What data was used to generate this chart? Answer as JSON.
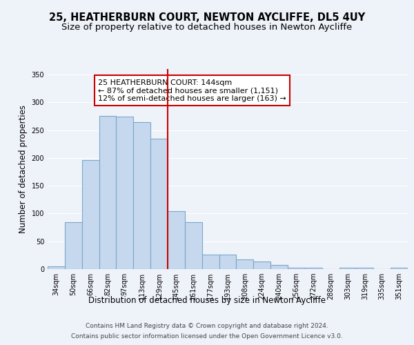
{
  "title": "25, HEATHERBURN COURT, NEWTON AYCLIFFE, DL5 4UY",
  "subtitle": "Size of property relative to detached houses in Newton Aycliffe",
  "xlabel": "Distribution of detached houses by size in Newton Aycliffe",
  "ylabel": "Number of detached properties",
  "categories": [
    "34sqm",
    "50sqm",
    "66sqm",
    "82sqm",
    "97sqm",
    "113sqm",
    "129sqm",
    "145sqm",
    "161sqm",
    "177sqm",
    "193sqm",
    "208sqm",
    "224sqm",
    "240sqm",
    "256sqm",
    "272sqm",
    "288sqm",
    "303sqm",
    "319sqm",
    "335sqm",
    "351sqm"
  ],
  "values": [
    5,
    85,
    196,
    275,
    274,
    265,
    235,
    104,
    84,
    26,
    26,
    17,
    14,
    8,
    3,
    3,
    0,
    3,
    2,
    0,
    3
  ],
  "bar_color": "#c5d8ed",
  "bar_edge_color": "#7ba7c9",
  "vline_x_idx": 7,
  "vline_color": "#cc0000",
  "annotation_text": "25 HEATHERBURN COURT: 144sqm\n← 87% of detached houses are smaller (1,151)\n12% of semi-detached houses are larger (163) →",
  "annotation_box_color": "#ffffff",
  "annotation_box_edge_color": "#cc0000",
  "ylim": [
    0,
    360
  ],
  "yticks": [
    0,
    50,
    100,
    150,
    200,
    250,
    300,
    350
  ],
  "footer_line1": "Contains HM Land Registry data © Crown copyright and database right 2024.",
  "footer_line2": "Contains public sector information licensed under the Open Government Licence v3.0.",
  "background_color": "#eef2f9",
  "grid_color": "#ffffff",
  "title_fontsize": 10.5,
  "subtitle_fontsize": 9.5,
  "xlabel_fontsize": 8.5,
  "ylabel_fontsize": 8.5,
  "tick_fontsize": 7,
  "annotation_fontsize": 8,
  "footer_fontsize": 6.5
}
